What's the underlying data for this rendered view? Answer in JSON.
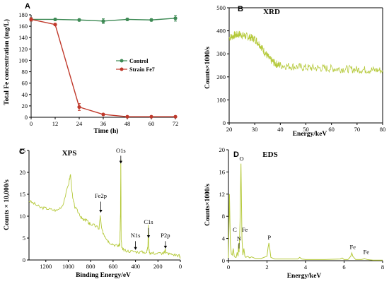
{
  "colors": {
    "control": "#3e8a55",
    "strain": "#c0392b",
    "spectrum": "#b5c93a",
    "axis": "#000000"
  },
  "chart_data": [
    {
      "panel": "A",
      "type": "line",
      "title": "",
      "xlabel": "Time (h)",
      "ylabel": "Total Fe concentration (mg/L)",
      "x": [
        0,
        12,
        24,
        36,
        48,
        60,
        72
      ],
      "xticks": [
        "0",
        "12",
        "24",
        "36",
        "48",
        "60",
        "72"
      ],
      "yticks": [
        "0",
        "20",
        "40",
        "60",
        "80",
        "100",
        "120",
        "140",
        "160",
        "180"
      ],
      "xlim": [
        0,
        72
      ],
      "ylim": [
        0,
        180
      ],
      "grid": false,
      "legend_position": "center-right",
      "series": [
        {
          "name": "Control",
          "values": [
            172,
            172,
            171,
            169,
            172,
            171,
            174
          ],
          "errors": [
            3,
            2,
            2,
            4,
            2,
            2,
            5
          ]
        },
        {
          "name": "Strain Fe7",
          "values": [
            172,
            163,
            18,
            5,
            1,
            1,
            1
          ],
          "errors": [
            3,
            2,
            6,
            1,
            0.5,
            0.5,
            0.5
          ]
        }
      ]
    },
    {
      "panel": "B",
      "type": "line",
      "title": "XRD",
      "xlabel": "Energy/keV",
      "ylabel": "Counts×1000/s",
      "xticks": [
        "20",
        "30",
        "40",
        "50",
        "60",
        "70",
        "80"
      ],
      "yticks": [
        "0",
        "100",
        "200",
        "300",
        "400",
        "500"
      ],
      "xlim": [
        20,
        80
      ],
      "ylim": [
        0,
        500
      ],
      "grid": false,
      "series": [
        {
          "x": [
            20,
            22,
            24,
            26,
            28,
            30,
            32,
            34,
            36,
            38,
            40,
            45,
            50,
            55,
            60,
            65,
            70,
            75,
            80
          ],
          "values": [
            370,
            380,
            385,
            378,
            372,
            365,
            340,
            305,
            275,
            258,
            250,
            245,
            240,
            238,
            236,
            234,
            232,
            230,
            228
          ]
        }
      ]
    },
    {
      "panel": "C",
      "type": "line",
      "title": "XPS",
      "xlabel": "Binding Energy/eV",
      "ylabel": "Counts × 10,000/s",
      "xticks": [
        "1200",
        "1000",
        "800",
        "600",
        "400",
        "200",
        "0"
      ],
      "yticks": [
        "0",
        "5",
        "10",
        "15",
        "20",
        "25"
      ],
      "xlim": [
        1350,
        0
      ],
      "ylim": [
        0,
        25
      ],
      "grid": false,
      "series": [
        {
          "x": [
            1350,
            1300,
            1250,
            1200,
            1150,
            1100,
            1050,
            1000,
            980,
            960,
            940,
            900,
            880,
            860,
            840,
            820,
            800,
            760,
            725,
            715,
            700,
            680,
            660,
            640,
            600,
            560,
            540,
            534,
            531,
            528,
            520,
            500,
            450,
            400,
            350,
            300,
            290,
            285,
            282,
            275,
            250,
            200,
            150,
            140,
            133,
            128,
            100,
            50,
            10,
            0
          ],
          "values": [
            13.5,
            12.8,
            12,
            11.8,
            11.5,
            11.3,
            12.5,
            17,
            19.5,
            14,
            12,
            10.5,
            9.5,
            9,
            9.3,
            8.5,
            8.2,
            7.8,
            7.2,
            10,
            6.8,
            5.8,
            5,
            4.2,
            3.6,
            3.2,
            3.5,
            11,
            23,
            4.5,
            2.6,
            2.2,
            2.0,
            1.9,
            1.8,
            1.8,
            3,
            8,
            3,
            1.7,
            1.6,
            1.5,
            1.6,
            1.8,
            2.4,
            1.6,
            1.4,
            1.2,
            1.0,
            0.5
          ]
        }
      ],
      "annotations": [
        "O1s",
        "Fe2p",
        "C1s",
        "N1s",
        "P2p"
      ]
    },
    {
      "panel": "D",
      "type": "line",
      "title": "EDS",
      "xlabel": "Energy/keV",
      "ylabel": "Counts×1000/s",
      "xticks": [
        "0",
        "2",
        "4",
        "6",
        "8"
      ],
      "yticks": [
        "0",
        "4",
        "8",
        "12",
        "16",
        "20"
      ],
      "xlim": [
        0,
        8
      ],
      "ylim": [
        0,
        20
      ],
      "grid": false,
      "series": [
        {
          "x": [
            0,
            0.05,
            0.1,
            0.15,
            0.2,
            0.25,
            0.3,
            0.35,
            0.4,
            0.45,
            0.5,
            0.52,
            0.55,
            0.6,
            0.65,
            0.7,
            0.75,
            0.8,
            0.85,
            0.9,
            1.0,
            1.1,
            1.2,
            1.4,
            1.7,
            2.0,
            2.05,
            2.1,
            2.15,
            2.2,
            2.4,
            3.0,
            3.6,
            3.7,
            3.8,
            4.0,
            5.0,
            5.8,
            5.9,
            6.0,
            6.2,
            6.35,
            6.4,
            6.45,
            6.6,
            6.9,
            7.0,
            7.06,
            7.1,
            7.2,
            7.5,
            8.0
          ],
          "values": [
            0.5,
            12,
            3,
            1.2,
            1.0,
            2.2,
            0.8,
            0.6,
            0.6,
            1.5,
            0.8,
            3,
            1.5,
            7,
            17.5,
            4,
            1.0,
            2.2,
            0.8,
            0.6,
            0.8,
            0.5,
            0.7,
            0.4,
            0.4,
            0.8,
            2.3,
            3.2,
            2.0,
            0.6,
            0.3,
            0.3,
            0.3,
            0.6,
            0.3,
            0.2,
            0.2,
            0.3,
            0.5,
            0.2,
            0.2,
            0.8,
            1.4,
            0.8,
            0.2,
            0.2,
            0.3,
            0.4,
            0.3,
            0.2,
            0.1,
            0.1
          ]
        }
      ],
      "annotations": [
        "O",
        "C",
        "N",
        "Fe",
        "P",
        "Fe",
        "Fe"
      ]
    }
  ],
  "panels": {
    "A": {
      "label": "A",
      "legend": [
        "Control",
        "Strain Fe7"
      ]
    },
    "B": {
      "label": "B"
    },
    "C": {
      "label": "C"
    },
    "D": {
      "label": "D"
    }
  }
}
